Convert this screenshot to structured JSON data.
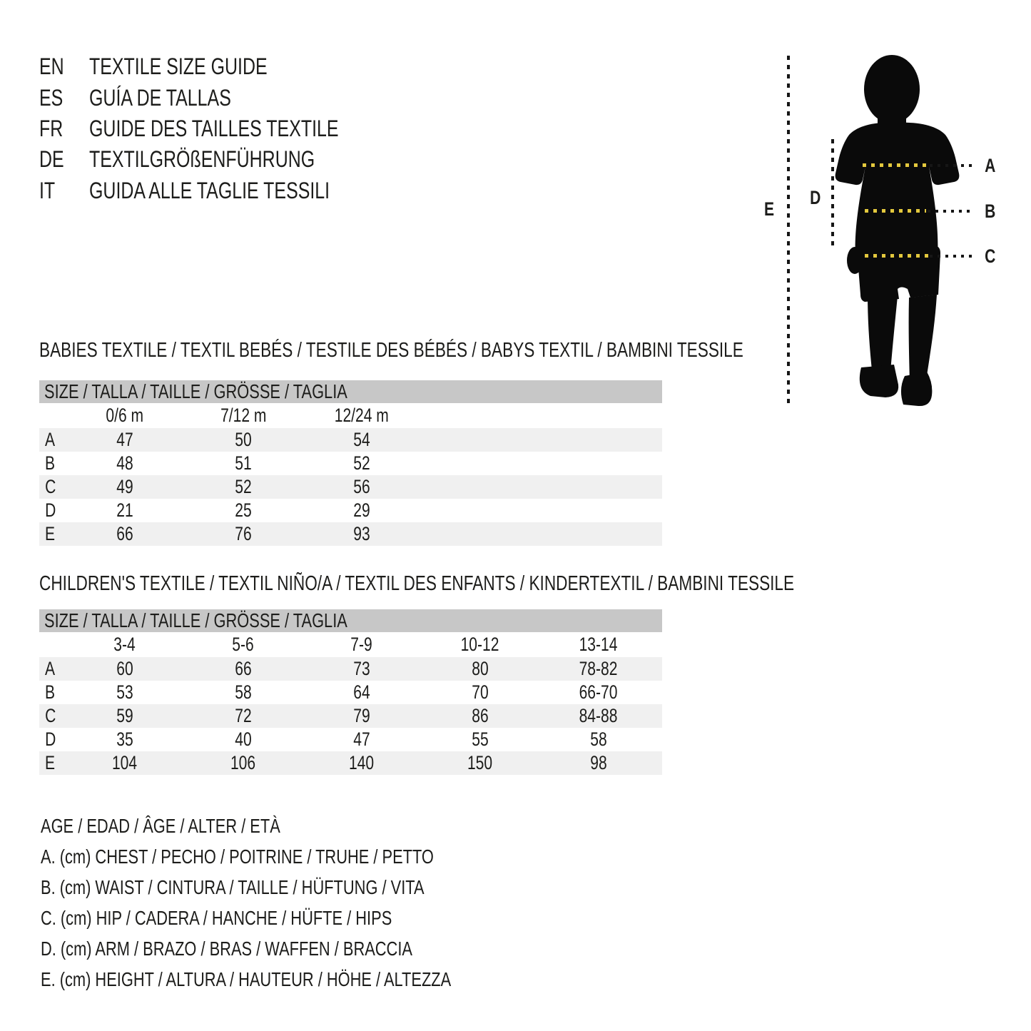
{
  "header": {
    "languages": [
      {
        "code": "EN",
        "title": "TEXTILE SIZE GUIDE"
      },
      {
        "code": "ES",
        "title": "GUÍA DE TALLAS"
      },
      {
        "code": "FR",
        "title": "GUIDE DES TAILLES TEXTILE"
      },
      {
        "code": "DE",
        "title": "TEXTILGRÖßENFÜHRUNG"
      },
      {
        "code": "IT",
        "title": "GUIDA ALLE TAGLIE TESSILI"
      }
    ]
  },
  "figure": {
    "labels": {
      "a": "A",
      "b": "B",
      "c": "C",
      "d": "D",
      "e": "E"
    },
    "dash_color": "#e3c83d",
    "silhouette_color": "#0a0a0a"
  },
  "babies": {
    "section_title": "BABIES TEXTILE / TEXTIL BEBÉS / TESTILE DES BÉBÉS / BABYS TEXTIL / BAMBINI TESSILE",
    "size_header": "SIZE / TALLA / TAILLE / GRÖSSE / TAGLIA",
    "columns": [
      "0/6 m",
      "7/12 m",
      "12/24 m"
    ],
    "rows": [
      {
        "label": "A",
        "values": [
          "47",
          "50",
          "54"
        ]
      },
      {
        "label": "B",
        "values": [
          "48",
          "51",
          "52"
        ]
      },
      {
        "label": "C",
        "values": [
          "49",
          "52",
          "56"
        ]
      },
      {
        "label": "D",
        "values": [
          "21",
          "25",
          "29"
        ]
      },
      {
        "label": "E",
        "values": [
          "66",
          "76",
          "93"
        ]
      }
    ]
  },
  "children": {
    "section_title": "CHILDREN'S TEXTILE / TEXTIL NIÑO/A / TEXTIL DES ENFANTS / KINDERTEXTIL / BAMBINI TESSILE",
    "size_header": "SIZE / TALLA / TAILLE / GRÖSSE / TAGLIA",
    "columns": [
      "3-4",
      "5-6",
      "7-9",
      "10-12",
      "13-14"
    ],
    "rows": [
      {
        "label": "A",
        "values": [
          "60",
          "66",
          "73",
          "80",
          "78-82"
        ]
      },
      {
        "label": "B",
        "values": [
          "53",
          "58",
          "64",
          "70",
          "66-70"
        ]
      },
      {
        "label": "C",
        "values": [
          "59",
          "72",
          "79",
          "86",
          "84-88"
        ]
      },
      {
        "label": "D",
        "values": [
          "35",
          "40",
          "47",
          "55",
          "58"
        ]
      },
      {
        "label": "E",
        "values": [
          "104",
          "106",
          "140",
          "150",
          "98"
        ]
      }
    ]
  },
  "legend": {
    "lines": [
      "AGE / EDAD / ÂGE / ALTER / ETÀ",
      "A. (cm) CHEST / PECHO / POITRINE / TRUHE / PETTO",
      "B. (cm) WAIST / CINTURA / TAILLE / HÜFTUNG / VITA",
      "C. (cm) HIP / CADERA / HANCHE / HÜFTE / HIPS",
      "D. (cm) ARM / BRAZO / BRAS / WAFFEN / BRACCIA",
      "E. (cm) HEIGHT / ALTURA / HAUTEUR / HÖHE / ALTEZZA"
    ]
  },
  "colors": {
    "text": "#1d1d1b",
    "table_header_bar": "#c7c7c7",
    "table_row_alt": "#f0f0f0",
    "measure_dash_yellow": "#e3c83d",
    "measure_dots_black": "#161616"
  }
}
